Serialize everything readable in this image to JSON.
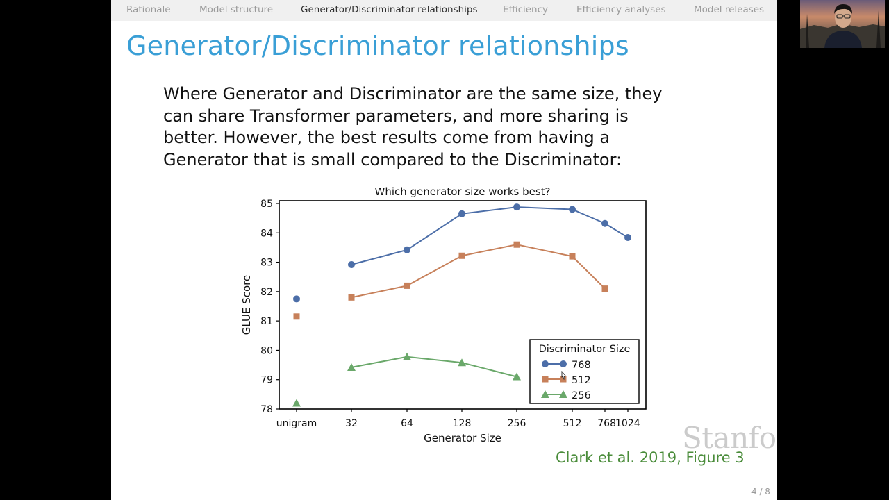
{
  "nav": {
    "items": [
      {
        "label": "Rationale",
        "active": false
      },
      {
        "label": "Model structure",
        "active": false
      },
      {
        "label": "Generator/Discriminator relationships",
        "active": true
      },
      {
        "label": "Efficiency",
        "active": false
      },
      {
        "label": "Efficiency analyses",
        "active": false
      },
      {
        "label": "Model releases",
        "active": false
      }
    ]
  },
  "slide": {
    "title": "Generator/Discriminator relationships",
    "body_lines": [
      "Where Generator and Discriminator are the same size, they",
      "can share Transformer parameters, and more sharing is",
      "better.  However, the best results come from having a",
      "Generator that is small compared to the Discriminator:"
    ],
    "citation": "Clark et al. 2019, Figure 3",
    "watermark": "Stanford",
    "page_number": "4 / 8"
  },
  "colors": {
    "title": "#3a9fd6",
    "citation": "#4a8c3a",
    "series_768": "#4c6ea8",
    "series_512": "#c7805a",
    "series_256": "#6aa86a"
  },
  "chart_data": {
    "type": "line",
    "title": "Which generator size works best?",
    "xlabel": "Generator Size",
    "ylabel": "GLUE Score",
    "categories": [
      "unigram",
      "32",
      "64",
      "128",
      "256",
      "512",
      "768",
      "1024"
    ],
    "ylim": [
      78,
      85
    ],
    "yticks": [
      "78",
      "79",
      "80",
      "81",
      "82",
      "83",
      "84",
      "85"
    ],
    "legend": {
      "title": "Discriminator Size",
      "placement": "lower-right"
    },
    "grid": false,
    "series": [
      {
        "name": "768",
        "marker": "circle",
        "color": "#4c6ea8",
        "points": [
          [
            "unigram",
            81.75
          ],
          [
            "32",
            82.92
          ],
          [
            "64",
            83.42
          ],
          [
            "128",
            84.65
          ],
          [
            "256",
            84.88
          ],
          [
            "512",
            84.8
          ],
          [
            "768",
            84.32
          ],
          [
            "1024",
            83.84
          ]
        ]
      },
      {
        "name": "512",
        "marker": "square",
        "color": "#c7805a",
        "points": [
          [
            "unigram",
            81.15
          ],
          [
            "32",
            81.8
          ],
          [
            "64",
            82.2
          ],
          [
            "128",
            83.22
          ],
          [
            "256",
            83.6
          ],
          [
            "512",
            83.2
          ],
          [
            "768",
            82.1
          ]
        ]
      },
      {
        "name": "256",
        "marker": "triangle",
        "color": "#6aa86a",
        "points": [
          [
            "unigram",
            78.2
          ],
          [
            "32",
            79.42
          ],
          [
            "64",
            79.78
          ],
          [
            "128",
            79.58
          ],
          [
            "256",
            79.1
          ]
        ]
      }
    ]
  },
  "webcam": {
    "icon": "presenter-video-feed"
  }
}
